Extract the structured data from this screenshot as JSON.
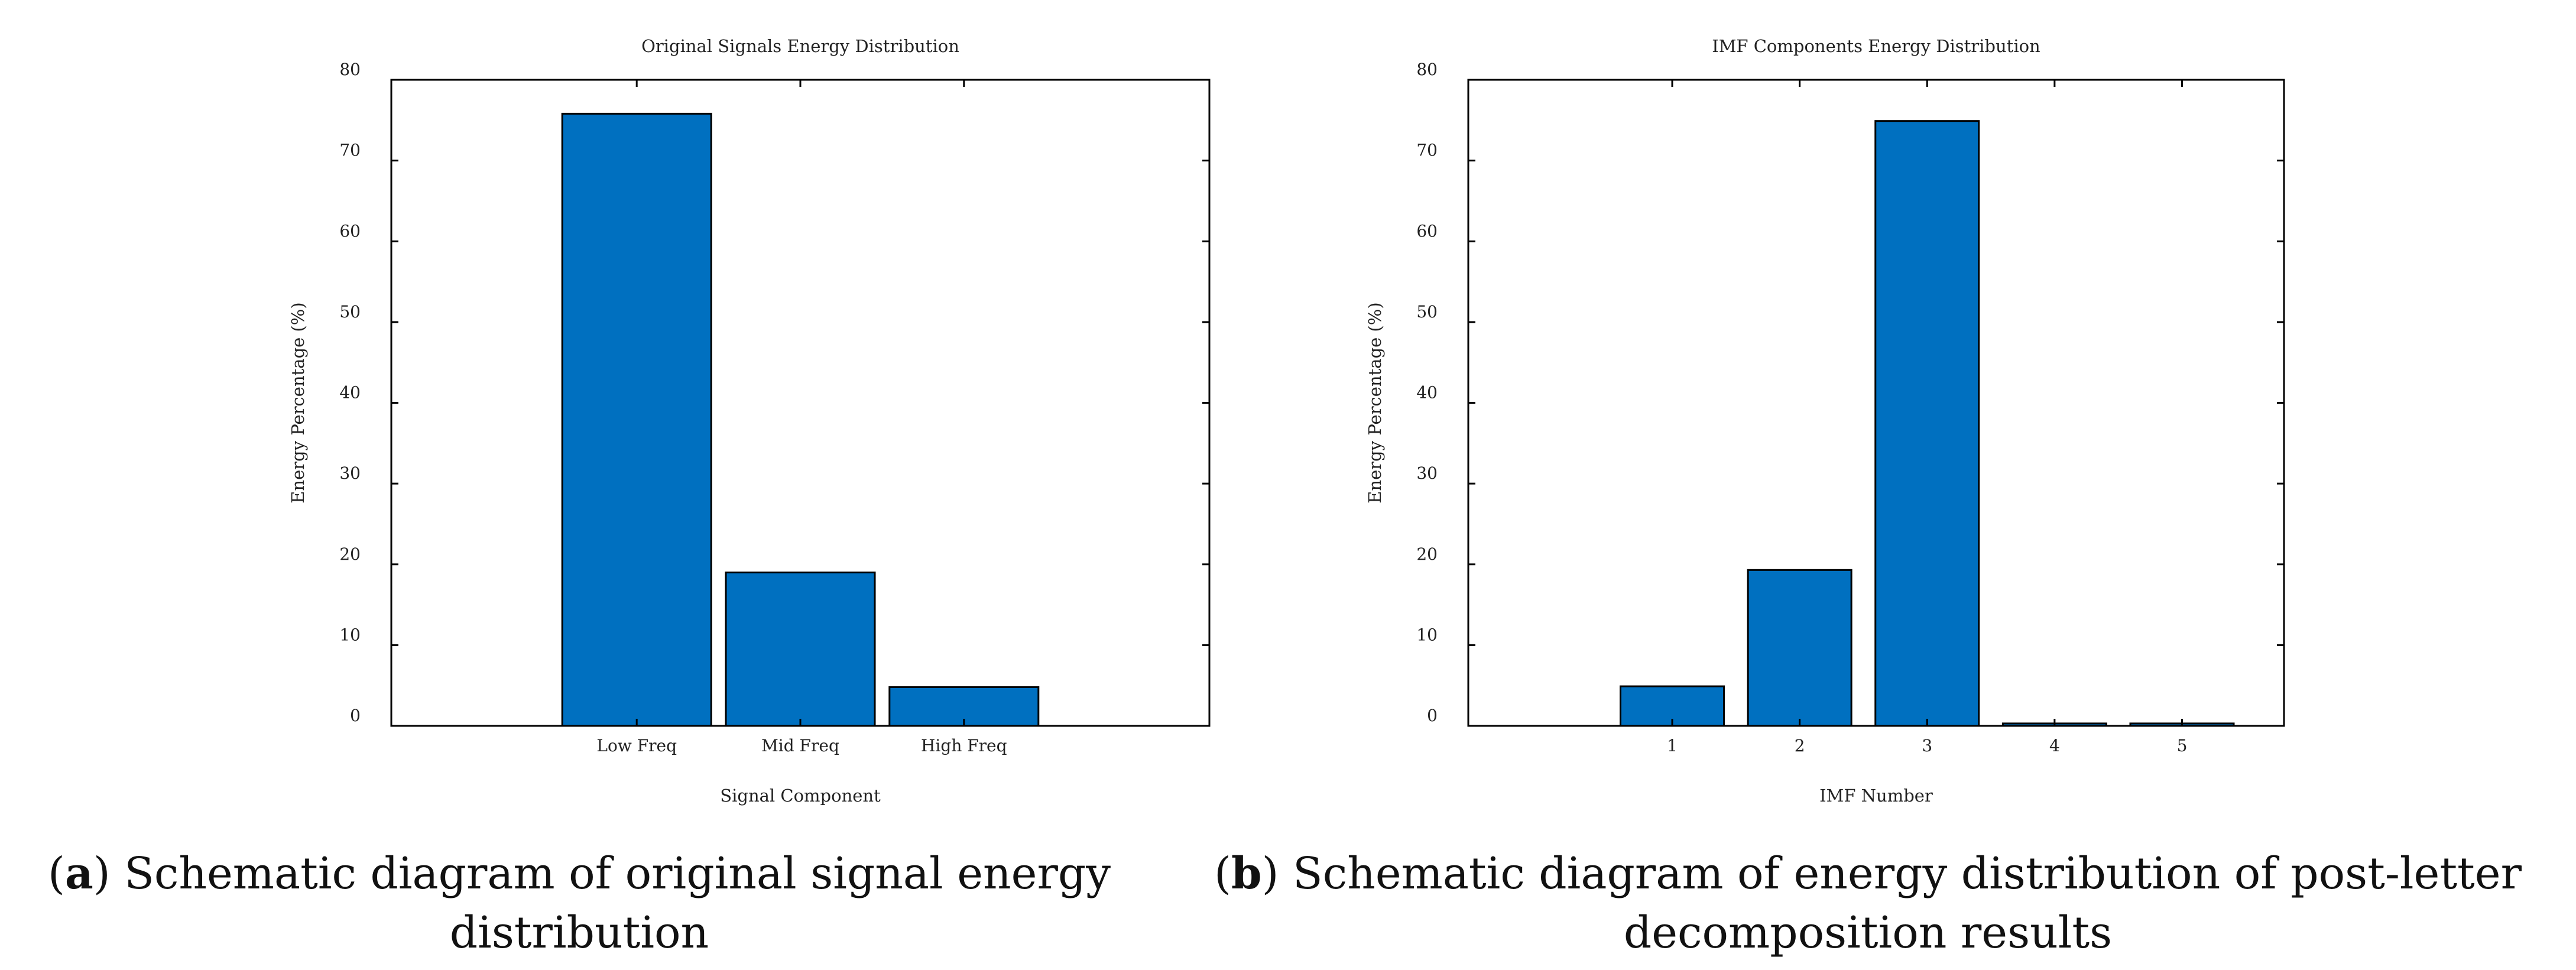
{
  "colors": {
    "bar": "#0070C0",
    "axis": "#000000",
    "text": "#222222"
  },
  "chart_data": [
    {
      "type": "bar",
      "title": "Original Signals Energy Distribution",
      "xlabel": "Signal Component",
      "ylabel": "Energy Percentage (%)",
      "categories": [
        "Low Freq",
        "Mid Freq",
        "High Freq"
      ],
      "x": [
        1,
        2,
        3
      ],
      "values": [
        75.8,
        19.0,
        4.8
      ],
      "xlim": [
        -0.5,
        4.5
      ],
      "ylim": [
        0,
        80
      ],
      "yticks": [
        0,
        10,
        20,
        30,
        40,
        50,
        60,
        70,
        80
      ],
      "grid": false,
      "legend": "none"
    },
    {
      "type": "bar",
      "title": "IMF Components Energy Distribution",
      "xlabel": "IMF Number",
      "ylabel": "Energy Percentage (%)",
      "categories": [
        "1",
        "2",
        "3",
        "4",
        "5"
      ],
      "x": [
        1,
        2,
        3,
        4,
        5
      ],
      "values": [
        4.9,
        19.3,
        74.9,
        0.3,
        0.3
      ],
      "xlim": [
        -0.6,
        5.8
      ],
      "ylim": [
        0,
        80
      ],
      "yticks": [
        0,
        10,
        20,
        30,
        40,
        50,
        60,
        70,
        80
      ],
      "grid": false,
      "legend": "none"
    }
  ],
  "captions": [
    {
      "label": "a",
      "open": "(",
      "close": ")",
      "text": " Schematic diagram of original signal energy distribution"
    },
    {
      "label": "b",
      "open": "(",
      "close": ")",
      "text": " Schematic diagram of energy distribution of post-letter decomposition results"
    }
  ]
}
